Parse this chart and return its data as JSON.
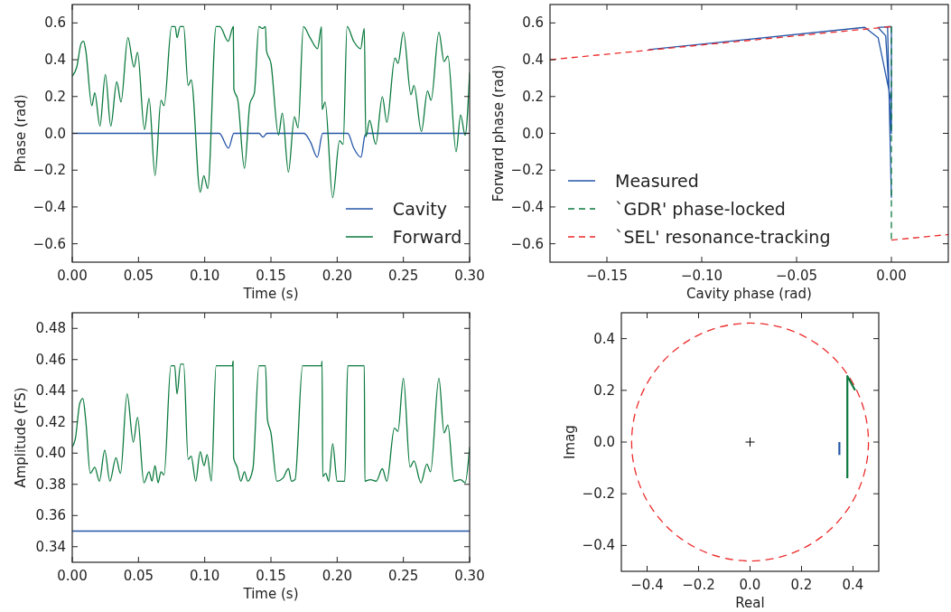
{
  "chart_data": [
    {
      "type": "line",
      "xlabel": "Time (s)",
      "ylabel": "Phase (rad)",
      "xlim": [
        0,
        0.3
      ],
      "ylim": [
        -0.7,
        0.7
      ],
      "xticks": [
        {
          "value": 0,
          "label": "0.00"
        },
        {
          "value": 0.05,
          "label": "0.05"
        },
        {
          "value": 0.1,
          "label": "0.10"
        },
        {
          "value": 0.15,
          "label": "0.15"
        },
        {
          "value": 0.2,
          "label": "0.20"
        },
        {
          "value": 0.25,
          "label": "0.25"
        },
        {
          "value": 0.3,
          "label": "0.30"
        }
      ],
      "yticks": [
        {
          "value": -0.6,
          "label": "−0.6"
        },
        {
          "value": -0.4,
          "label": "−0.4"
        },
        {
          "value": -0.2,
          "label": "−0.2"
        },
        {
          "value": 0,
          "label": "0.0"
        },
        {
          "value": 0.2,
          "label": "0.2"
        },
        {
          "value": 0.4,
          "label": "0.4"
        },
        {
          "value": 0.6,
          "label": "0.6"
        }
      ],
      "legend": "bottom right",
      "series": [
        {
          "name": "Cavity",
          "color": "#2456a8",
          "x": [
            0,
            0.111,
            0.118,
            0.122,
            0.141,
            0.144,
            0.147,
            0.175,
            0.18,
            0.185,
            0.189,
            0.208,
            0.2125,
            0.218,
            0.221,
            0.223,
            0.3
          ],
          "values": [
            0,
            0,
            -0.08,
            0,
            0,
            -0.02,
            0,
            0,
            -0.05,
            -0.13,
            0,
            0,
            -0.08,
            -0.13,
            -0.01,
            0,
            0
          ]
        },
        {
          "name": "Forward",
          "color": "#0b7a3e",
          "x": [
            0,
            0.0034,
            0.0068,
            0.0086,
            0.0102,
            0.0148,
            0.017,
            0.0209,
            0.025,
            0.0291,
            0.0336,
            0.0368,
            0.042,
            0.0466,
            0.0493,
            0.0545,
            0.058,
            0.0625,
            0.067,
            0.0693,
            0.075,
            0.0777,
            0.0791,
            0.0814,
            0.0841,
            0.0875,
            0.0898,
            0.0966,
            0.0993,
            0.1023,
            0.1086,
            0.1114,
            0.1177,
            0.1216,
            0.122,
            0.125,
            0.13,
            0.1341,
            0.1375,
            0.1409,
            0.1436,
            0.1459,
            0.1466,
            0.15,
            0.1557,
            0.1586,
            0.1632,
            0.1677,
            0.1705,
            0.1745,
            0.1795,
            0.1852,
            0.1882,
            0.1886,
            0.1909,
            0.1966,
            0.2018,
            0.2045,
            0.2075,
            0.2125,
            0.2177,
            0.2205,
            0.2216,
            0.2245,
            0.2291,
            0.2341,
            0.2375,
            0.2436,
            0.2459,
            0.25,
            0.2557,
            0.258,
            0.2636,
            0.2682,
            0.2709,
            0.2768,
            0.2807,
            0.2836,
            0.2898,
            0.2932,
            0.2966,
            0.3
          ],
          "values": [
            0.31,
            0.36,
            0.49,
            0.5,
            0.45,
            0.15,
            0.22,
            0.04,
            0.32,
            0.04,
            0.28,
            0.17,
            0.52,
            0.36,
            0.44,
            0.02,
            0.19,
            -0.23,
            0.18,
            0.15,
            0.58,
            0.58,
            0.52,
            0.58,
            0.58,
            0.26,
            0.29,
            -0.32,
            -0.23,
            -0.3,
            0.58,
            0.58,
            0.5,
            0.58,
            0.24,
            0.18,
            -0.19,
            0.16,
            0.22,
            0.58,
            0.57,
            0.58,
            0.45,
            0.38,
            -0.01,
            0.11,
            -0.21,
            0.09,
            0.03,
            0.58,
            0.52,
            0.46,
            0.58,
            0.13,
            0.17,
            -0.35,
            -0.04,
            -0.06,
            0.58,
            0.5,
            0.46,
            0.57,
            -0.02,
            0.07,
            -0.06,
            0.2,
            0.06,
            0.41,
            0.38,
            0.55,
            0.21,
            0.26,
            0.01,
            0.23,
            0.18,
            0.55,
            0.39,
            0.42,
            -0.1,
            0.1,
            -0.01,
            0.33
          ]
        }
      ]
    },
    {
      "type": "line",
      "xlabel": "Cavity phase (rad)",
      "ylabel": "Forward phase (rad)",
      "xlim": [
        -0.18,
        0.03
      ],
      "ylim": [
        -0.7,
        0.7
      ],
      "xticks": [
        {
          "value": -0.15,
          "label": "−0.15"
        },
        {
          "value": -0.1,
          "label": "−0.10"
        },
        {
          "value": -0.05,
          "label": "−0.05"
        },
        {
          "value": 0,
          "label": "0.00"
        }
      ],
      "yticks": [
        {
          "value": -0.6,
          "label": "−0.6"
        },
        {
          "value": -0.4,
          "label": "−0.4"
        },
        {
          "value": -0.2,
          "label": "−0.2"
        },
        {
          "value": 0,
          "label": "0.0"
        },
        {
          "value": 0.2,
          "label": "0.2"
        },
        {
          "value": 0.4,
          "label": "0.4"
        },
        {
          "value": 0.6,
          "label": "0.6"
        }
      ],
      "legend": "bottom left",
      "series": [
        {
          "name": "Measured",
          "color": "#2456a8",
          "line_style": "solid",
          "x": [
            -0.128,
            -0.014,
            -0.007,
            0,
            0,
            -0.007,
            -0.003,
            0,
            0,
            -0.002,
            0
          ],
          "values": [
            0.455,
            0.576,
            0.52,
            0.17,
            0.58,
            0.575,
            0.53,
            0,
            0.58,
            0.58,
            -0.35
          ]
        },
        {
          "name": "`GDR' phase-locked",
          "color": "#0b7a3e",
          "line_style": "dashed",
          "x": [
            0,
            0
          ],
          "values": [
            0.58,
            -0.58
          ]
        },
        {
          "name": "`SEL' resonance-tracking",
          "color": "#ee2a2a",
          "line_style": "dashed",
          "x": [
            -0.18,
            0,
            null,
            0,
            0.03
          ],
          "values": [
            0.4,
            0.58,
            null,
            -0.58,
            -0.55
          ]
        }
      ]
    },
    {
      "type": "line",
      "xlabel": "Time (s)",
      "ylabel": "Amplitude (FS)",
      "xlim": [
        0,
        0.3
      ],
      "ylim": [
        0.33,
        0.49
      ],
      "xticks": [
        {
          "value": 0,
          "label": "0.00"
        },
        {
          "value": 0.05,
          "label": "0.05"
        },
        {
          "value": 0.1,
          "label": "0.10"
        },
        {
          "value": 0.15,
          "label": "0.15"
        },
        {
          "value": 0.2,
          "label": "0.20"
        },
        {
          "value": 0.25,
          "label": "0.25"
        },
        {
          "value": 0.3,
          "label": "0.30"
        }
      ],
      "yticks": [
        0.34,
        0.36,
        0.38,
        {
          "value": 0.4,
          "label": "0.40"
        },
        0.42,
        0.44,
        0.46,
        0.48
      ],
      "series": [
        {
          "color": "#2456a8",
          "x": [
            0,
            0.3
          ],
          "values": [
            0.35,
            0.35
          ]
        },
        {
          "color": "#0b7a3e",
          "x": [
            0,
            0.0023,
            0.0057,
            0.008,
            0.0102,
            0.0136,
            0.017,
            0.0205,
            0.0245,
            0.0284,
            0.033,
            0.0364,
            0.0414,
            0.0461,
            0.0493,
            0.0541,
            0.058,
            0.0602,
            0.0625,
            0.0648,
            0.067,
            0.0693,
            0.0745,
            0.0773,
            0.0791,
            0.0818,
            0.0841,
            0.0875,
            0.0898,
            0.0932,
            0.0966,
            0.0995,
            0.1018,
            0.105,
            0.1086,
            0.1209,
            0.1214,
            0.1218,
            0.1245,
            0.1273,
            0.13,
            0.1325,
            0.1364,
            0.1409,
            0.1459,
            0.1473,
            0.15,
            0.1545,
            0.1591,
            0.1632,
            0.1655,
            0.1682,
            0.1739,
            0.1882,
            0.1886,
            0.1891,
            0.1914,
            0.1936,
            0.1966,
            0.2,
            0.2057,
            0.208,
            0.2205,
            0.2209,
            0.225,
            0.2295,
            0.2341,
            0.2375,
            0.2432,
            0.2459,
            0.25,
            0.255,
            0.258,
            0.2632,
            0.2677,
            0.2705,
            0.2768,
            0.2807,
            0.2836,
            0.2882,
            0.2932,
            0.2966,
            0.3
          ],
          "values": [
            0.404,
            0.409,
            0.432,
            0.435,
            0.421,
            0.387,
            0.391,
            0.382,
            0.402,
            0.382,
            0.397,
            0.387,
            0.438,
            0.407,
            0.423,
            0.381,
            0.388,
            0.382,
            0.392,
            0.381,
            0.388,
            0.386,
            0.456,
            0.456,
            0.438,
            0.457,
            0.457,
            0.396,
            0.398,
            0.382,
            0.401,
            0.392,
            0.399,
            0.382,
            0.456,
            0.456,
            0.459,
            0.397,
            0.391,
            0.382,
            0.388,
            0.382,
            0.39,
            0.456,
            0.456,
            0.422,
            0.413,
            0.382,
            0.384,
            0.39,
            0.382,
            0.383,
            0.456,
            0.456,
            0.459,
            0.385,
            0.387,
            0.382,
            0.406,
            0.382,
            0.382,
            0.456,
            0.456,
            0.382,
            0.383,
            0.382,
            0.39,
            0.382,
            0.416,
            0.414,
            0.448,
            0.391,
            0.395,
            0.381,
            0.393,
            0.388,
            0.448,
            0.413,
            0.418,
            0.382,
            0.383,
            0.381,
            0.404
          ]
        }
      ]
    },
    {
      "type": "line",
      "xlabel": "Real",
      "ylabel": "Imag",
      "xlim": [
        -0.5,
        0.5
      ],
      "ylim": [
        -0.5,
        0.5
      ],
      "xticks": [
        {
          "value": -0.4,
          "label": "−0.4"
        },
        {
          "value": -0.2,
          "label": "−0.2"
        },
        {
          "value": 0,
          "label": "0.0"
        },
        {
          "value": 0.2,
          "label": "0.2"
        },
        {
          "value": 0.4,
          "label": "0.4"
        }
      ],
      "yticks": [
        {
          "value": -0.4,
          "label": "−0.4"
        },
        {
          "value": -0.2,
          "label": "−0.2"
        },
        {
          "value": 0,
          "label": "0.0"
        },
        {
          "value": 0.2,
          "label": "0.2"
        },
        {
          "value": 0.4,
          "label": "0.4"
        }
      ],
      "series": [
        {
          "color": "#2456a8",
          "line_style": "solid",
          "x": [
            0.347,
            0.347
          ],
          "values": [
            0,
            -0.05
          ]
        },
        {
          "color": "#0b7a3e",
          "line_style": "solid",
          "x": [
            0.408,
            0.378,
            0.378
          ],
          "values": [
            0.2,
            0.255,
            -0.14
          ]
        },
        {
          "type": "scatter",
          "marker": "cross",
          "color": "#000000",
          "x": [
            0
          ],
          "values": [
            0
          ]
        }
      ]
    }
  ]
}
